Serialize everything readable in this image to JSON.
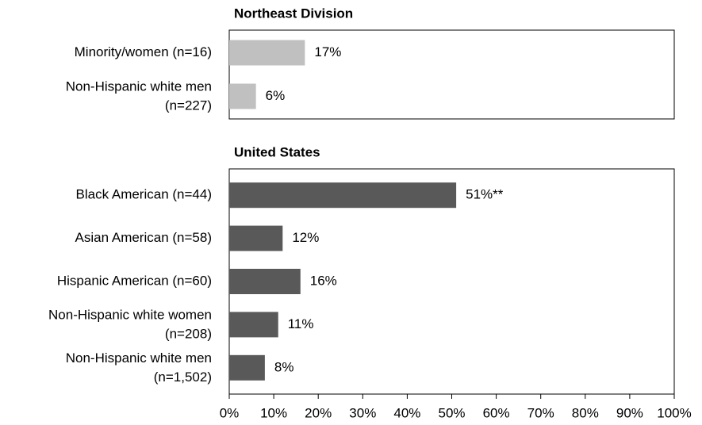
{
  "chart_data": [
    {
      "type": "barh",
      "title": "Northeast Division",
      "categories": [
        "Minority/women (n=16)",
        "Non-Hispanic white men (n=227)"
      ],
      "values": [
        17,
        6
      ],
      "value_labels": [
        "17%",
        "6%"
      ],
      "color": "#c0c0c0",
      "xlim": [
        0,
        100
      ]
    },
    {
      "type": "barh",
      "title": "United States",
      "categories": [
        "Black American (n=44)",
        "Asian American (n=58)",
        "Hispanic American (n=60)",
        "Non-Hispanic white women (n=208)",
        "Non-Hispanic white men (n=1,502)"
      ],
      "values": [
        51,
        12,
        16,
        11,
        8
      ],
      "value_labels": [
        "51%**",
        "12%",
        "16%",
        "11%",
        "8%"
      ],
      "color": "#595959",
      "xlim": [
        0,
        100
      ],
      "xticks": [
        {
          "value": 0,
          "label": "0%"
        },
        {
          "value": 10,
          "label": "10%"
        },
        {
          "value": 20,
          "label": "20%"
        },
        {
          "value": 30,
          "label": "30%"
        },
        {
          "value": 40,
          "label": "40%"
        },
        {
          "value": 50,
          "label": "50%"
        },
        {
          "value": 60,
          "label": "60%"
        },
        {
          "value": 70,
          "label": "70%"
        },
        {
          "value": 80,
          "label": "80%"
        },
        {
          "value": 90,
          "label": "90%"
        },
        {
          "value": 100,
          "label": "100%"
        }
      ]
    }
  ]
}
